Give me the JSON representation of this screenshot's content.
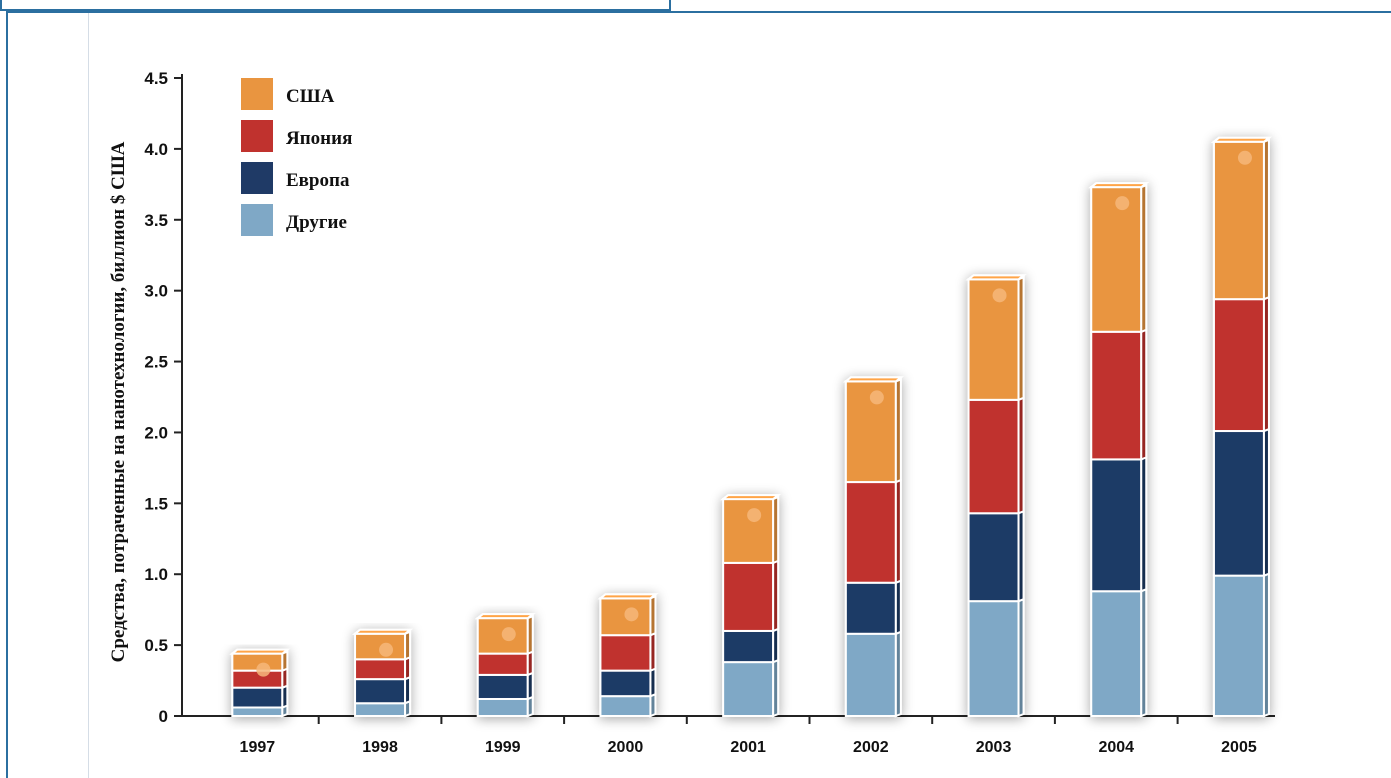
{
  "chart_data": {
    "type": "bar",
    "stacked": true,
    "ylabel": "Средства, потраченные на нанотехнологии, биллион $ США",
    "ylim": [
      0,
      4.5
    ],
    "yticks": [
      "0",
      "0.5",
      "1.0",
      "1.5",
      "2.0",
      "2.5",
      "3.0",
      "3.5",
      "4.0",
      "4.5"
    ],
    "categories": [
      "1997",
      "1998",
      "1999",
      "2000",
      "2001",
      "2002",
      "2003",
      "2004",
      "2005"
    ],
    "legend_position": "top-left",
    "series": [
      {
        "name": "Другие",
        "color": "#7fa8c6",
        "values": [
          0.06,
          0.09,
          0.12,
          0.14,
          0.38,
          0.58,
          0.81,
          0.88,
          0.99
        ]
      },
      {
        "name": "Европа",
        "color": "#1f3a66",
        "values": [
          0.14,
          0.17,
          0.17,
          0.18,
          0.22,
          0.36,
          0.62,
          0.93,
          1.02
        ]
      },
      {
        "name": "Япония",
        "color": "#c0322e",
        "values": [
          0.12,
          0.14,
          0.15,
          0.25,
          0.48,
          0.71,
          0.8,
          0.9,
          0.93
        ]
      },
      {
        "name": "США",
        "color": "#e99540",
        "values": [
          0.12,
          0.18,
          0.25,
          0.26,
          0.45,
          0.71,
          0.85,
          1.02,
          1.11
        ]
      }
    ],
    "legend_order": [
      "США",
      "Япония",
      "Европа",
      "Другие"
    ]
  }
}
